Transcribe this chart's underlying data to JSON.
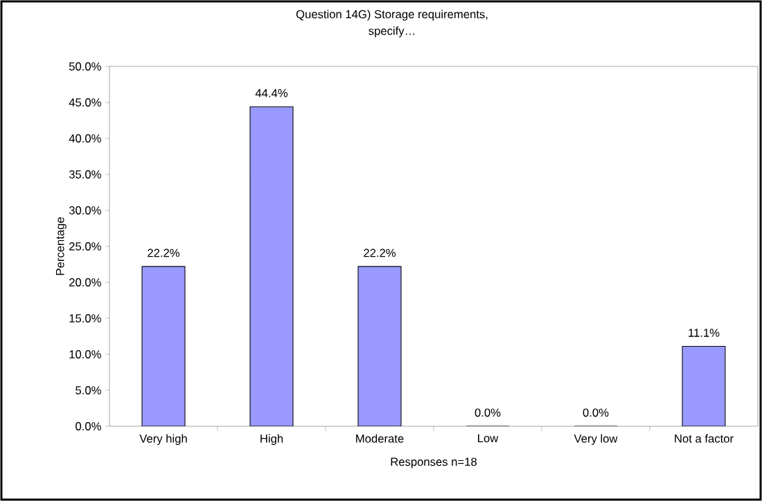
{
  "chart_data": {
    "type": "bar",
    "title": "Question 14G)  Storage requirements,\nspecify…",
    "xlabel": "Responses n=18",
    "ylabel": "Percentage",
    "categories": [
      "Very high",
      "High",
      "Moderate",
      "Low",
      "Very low",
      "Not a factor"
    ],
    "values": [
      22.2,
      44.4,
      22.2,
      0,
      0,
      11.1
    ],
    "value_labels": [
      "22.2%",
      "44.4%",
      "22.2%",
      "0.0%",
      "0.0%",
      "11.1%"
    ],
    "color": "#9999ff",
    "ylim": [
      0,
      50
    ],
    "yticks": [
      {
        "value": 0,
        "label": "0.0%"
      },
      {
        "value": 5,
        "label": "5.0%"
      },
      {
        "value": 10,
        "label": "10.0%"
      },
      {
        "value": 15,
        "label": "15.0%"
      },
      {
        "value": 20,
        "label": "20.0%"
      },
      {
        "value": 25,
        "label": "25.0%"
      },
      {
        "value": 30,
        "label": "30.0%"
      },
      {
        "value": 35,
        "label": "35.0%"
      },
      {
        "value": 40,
        "label": "40.0%"
      },
      {
        "value": 45,
        "label": "45.0%"
      },
      {
        "value": 50,
        "label": "50.0%"
      }
    ],
    "grid": false
  }
}
